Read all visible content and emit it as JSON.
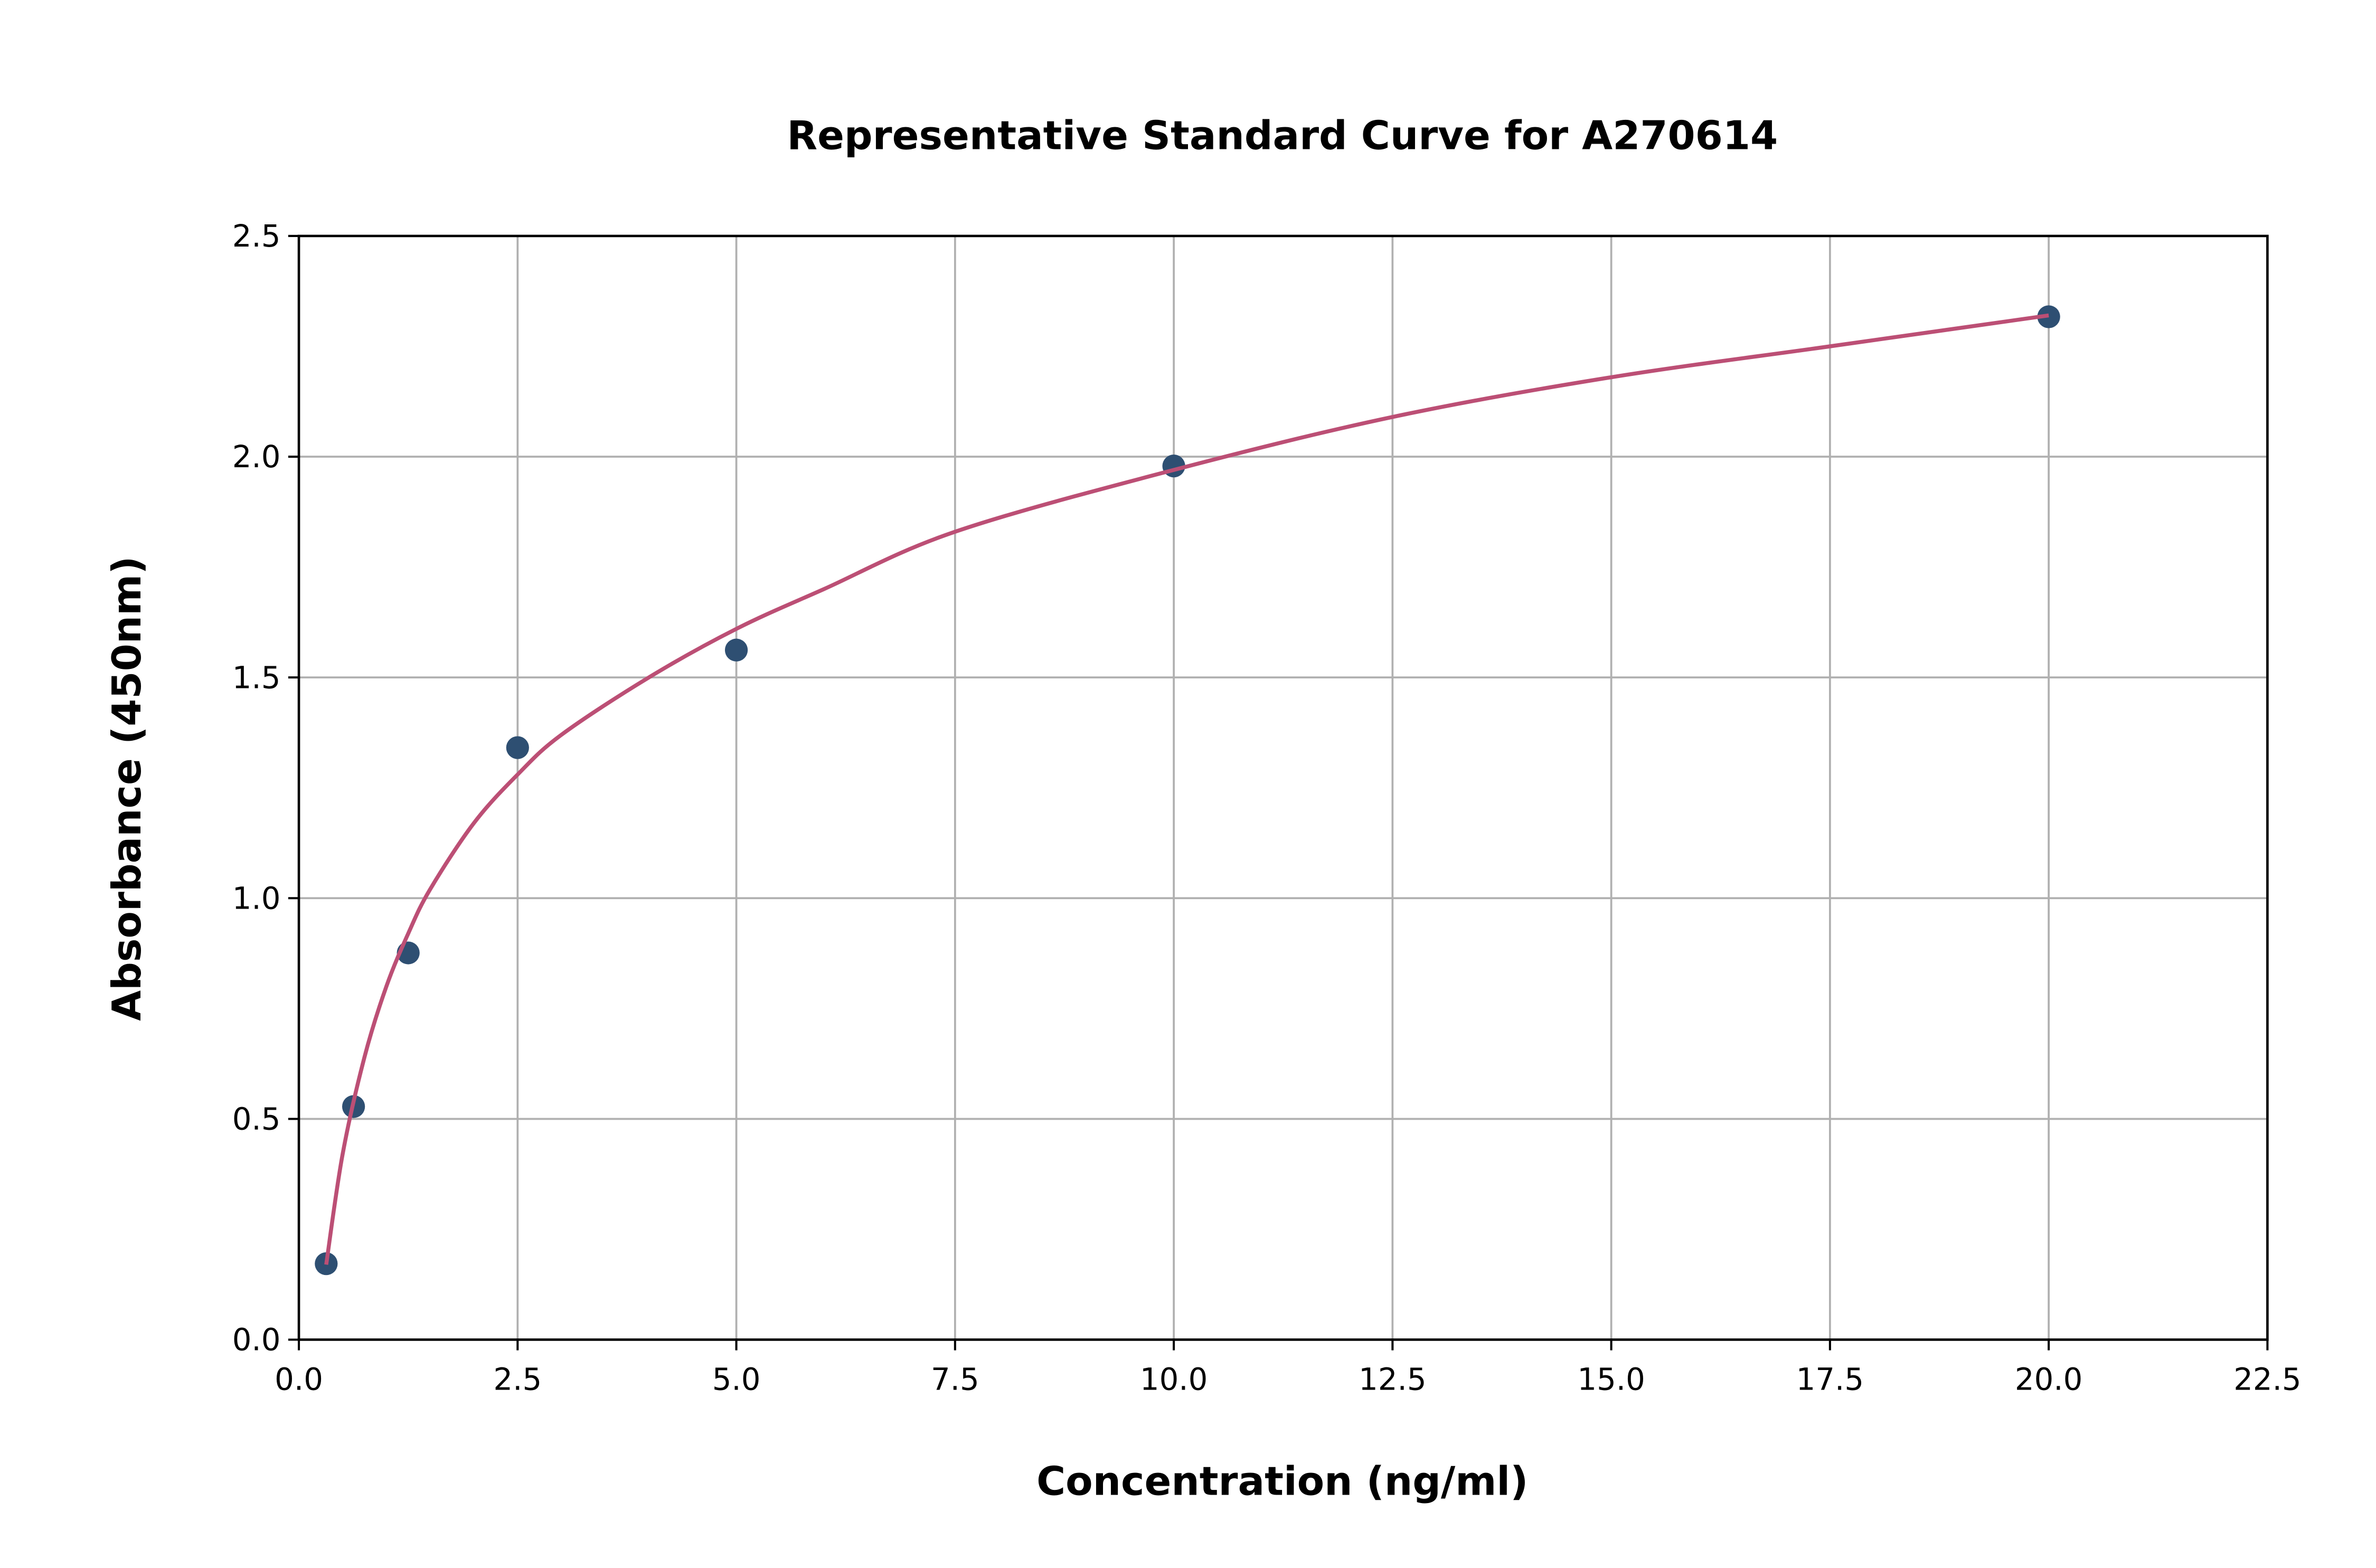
{
  "chart_data": {
    "type": "scatter",
    "title": "Representative Standard Curve for A270614",
    "xlabel": "Concentration (ng/ml)",
    "ylabel": "Absorbance (450nm)",
    "xlim": [
      0,
      22.5
    ],
    "ylim": [
      0,
      2.5
    ],
    "xticks": [
      "0.0",
      "2.5",
      "5.0",
      "7.5",
      "10.0",
      "12.5",
      "15.0",
      "17.5",
      "20.0",
      "22.5"
    ],
    "yticks": [
      "0.0",
      "0.5",
      "1.0",
      "1.5",
      "2.0",
      "2.5"
    ],
    "grid": true,
    "series": [
      {
        "type": "scatter",
        "color": "#2e4f72",
        "x": [
          0.3125,
          0.625,
          1.25,
          2.5,
          5,
          10,
          20
        ],
        "y": [
          0.172,
          0.528,
          0.876,
          1.341,
          1.562,
          1.979,
          2.317
        ]
      },
      {
        "type": "line",
        "color": "#bc4f75",
        "x": [
          0.3125,
          0.5,
          0.75,
          1.0,
          1.25,
          1.5,
          2.0,
          2.5,
          3.0,
          4.0,
          5.0,
          6.0,
          7.5,
          10,
          12.5,
          15,
          17.5,
          20
        ],
        "y": [
          0.17,
          0.42,
          0.64,
          0.8,
          0.92,
          1.02,
          1.17,
          1.28,
          1.37,
          1.5,
          1.61,
          1.7,
          1.83,
          1.97,
          2.09,
          2.18,
          2.25,
          2.32
        ]
      }
    ]
  }
}
